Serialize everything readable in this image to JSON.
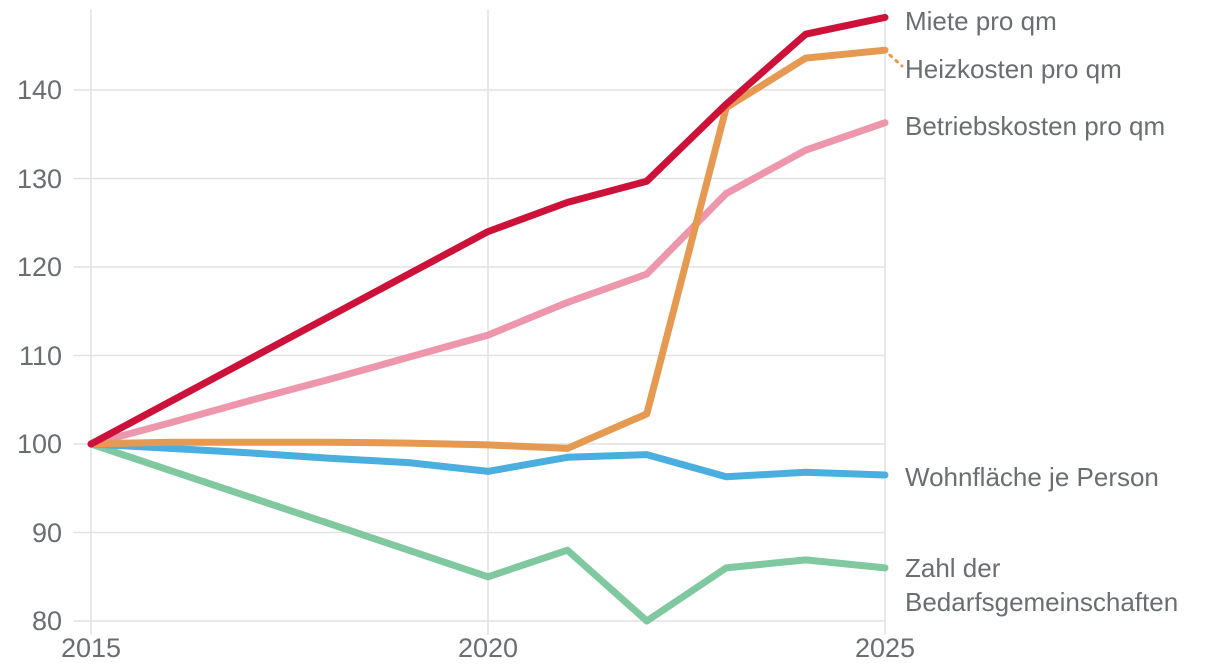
{
  "chart_data": {
    "type": "line",
    "x": [
      2015,
      2016,
      2017,
      2018,
      2019,
      2020,
      2021,
      2022,
      2023,
      2024,
      2025
    ],
    "xticks": [
      "2015",
      "2020",
      "2025"
    ],
    "yticks": [
      "80",
      "90",
      "100",
      "110",
      "120",
      "130",
      "140"
    ],
    "xlim": [
      2015,
      2025
    ],
    "ylim": [
      80,
      148.5
    ],
    "grid": true,
    "legend_position": "right-edge-direct-labels",
    "index_base": "2015 = 100",
    "series": [
      {
        "name": "Miete pro qm",
        "color": "#ce1138",
        "values": [
          100,
          104.8,
          109.6,
          114.4,
          119.2,
          124.0,
          127.3,
          129.7,
          138.4,
          146.3,
          148.2
        ]
      },
      {
        "name": "Heizkosten pro qm",
        "color": "#e69950",
        "values": [
          100,
          100.2,
          100.2,
          100.2,
          100.1,
          99.9,
          99.5,
          103.4,
          138.0,
          143.6,
          144.5
        ]
      },
      {
        "name": "Betriebskosten pro qm",
        "color": "#ee96ab",
        "values": [
          100,
          102.4,
          104.9,
          107.3,
          109.8,
          112.3,
          116.0,
          119.2,
          128.3,
          133.2,
          136.3
        ]
      },
      {
        "name": "Wohnfläche je Person",
        "color": "#4aaede",
        "values": [
          100,
          99.5,
          99.0,
          98.4,
          97.9,
          96.9,
          98.5,
          98.8,
          96.3,
          96.8,
          96.5
        ]
      },
      {
        "name": "Zahl der Bedarfsgemeinschaften",
        "color": "#7fc8a0",
        "values": [
          100,
          97.0,
          94.0,
          91.0,
          88.0,
          85.0,
          88.0,
          80.0,
          86.0,
          86.9,
          86.0
        ]
      }
    ]
  },
  "colors": {
    "background": "#ffffff",
    "gridline": "#e2e2e2",
    "tick_text": "#6a6e71",
    "label_text": "#6a6e71"
  }
}
